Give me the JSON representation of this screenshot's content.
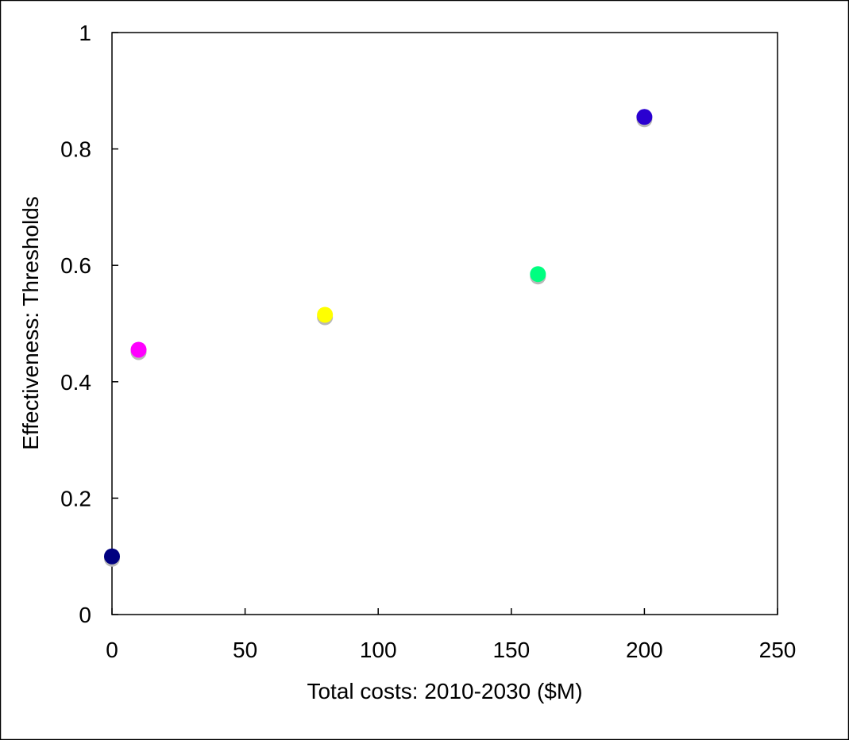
{
  "chart_data": {
    "type": "scatter",
    "title": "",
    "xlabel": "Total costs: 2010-2030 ($M)",
    "ylabel": "Effectiveness: Thresholds",
    "xlim": [
      0,
      250
    ],
    "ylim": [
      0,
      1
    ],
    "xticks": [
      0,
      50,
      100,
      150,
      200,
      250
    ],
    "yticks": [
      0,
      0.2,
      0.4,
      0.6,
      0.8,
      1
    ],
    "xtick_labels": [
      "0",
      "50",
      "100",
      "150",
      "200",
      "250"
    ],
    "ytick_labels": [
      "0",
      "0.2",
      "0.4",
      "0.6",
      "0.8",
      "1"
    ],
    "grid": false,
    "legend": "none",
    "points": [
      {
        "x": 0,
        "y": 0.1,
        "color": "#000080"
      },
      {
        "x": 10,
        "y": 0.455,
        "color": "#ff00ff"
      },
      {
        "x": 80,
        "y": 0.515,
        "color": "#ffff00"
      },
      {
        "x": 160,
        "y": 0.585,
        "color": "#00ff80"
      },
      {
        "x": 200,
        "y": 0.855,
        "color": "#2a00d0"
      }
    ]
  }
}
